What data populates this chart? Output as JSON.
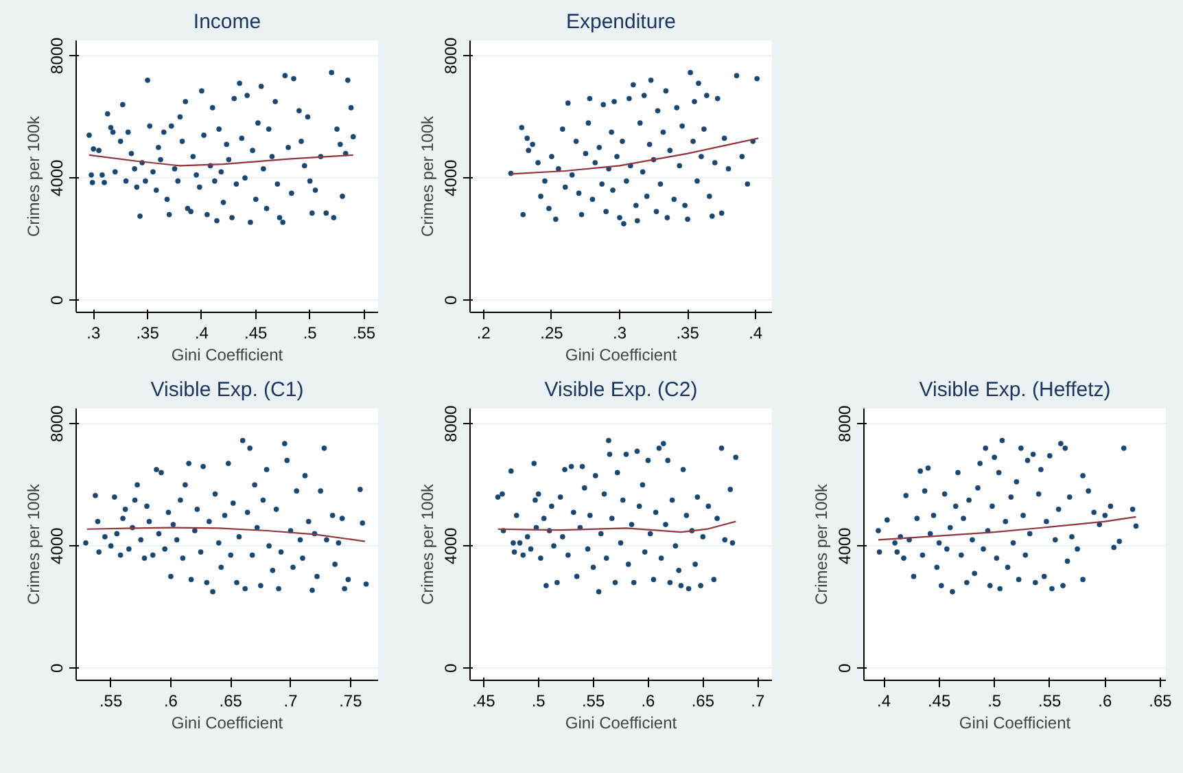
{
  "chart_data": [
    {
      "type": "scatter",
      "title": "Income",
      "xlabel": "Gini Coefficient",
      "ylabel": "Crimes per 100k",
      "xlim": [
        0.284,
        0.563
      ],
      "ylim": [
        -400,
        8500
      ],
      "xticks": [
        {
          "value": 0.3,
          "label": ".3"
        },
        {
          "value": 0.35,
          "label": ".35"
        },
        {
          "value": 0.4,
          "label": ".4"
        },
        {
          "value": 0.45,
          "label": ".45"
        },
        {
          "value": 0.5,
          "label": ".5"
        },
        {
          "value": 0.55,
          "label": ".55"
        }
      ],
      "yticks": [
        0,
        4000,
        8000
      ],
      "grid": "y",
      "series": [
        {
          "marker": "circle",
          "color": "#1a476f",
          "x": [
            0.296,
            0.298,
            0.299,
            0.3,
            0.305,
            0.308,
            0.31,
            0.313,
            0.316,
            0.318,
            0.32,
            0.325,
            0.327,
            0.33,
            0.332,
            0.335,
            0.338,
            0.34,
            0.343,
            0.345,
            0.348,
            0.35,
            0.352,
            0.355,
            0.358,
            0.36,
            0.362,
            0.365,
            0.368,
            0.37,
            0.372,
            0.375,
            0.378,
            0.38,
            0.382,
            0.385,
            0.387,
            0.39,
            0.392,
            0.395,
            0.398,
            0.4,
            0.402,
            0.405,
            0.408,
            0.41,
            0.412,
            0.414,
            0.416,
            0.418,
            0.42,
            0.423,
            0.425,
            0.428,
            0.43,
            0.432,
            0.435,
            0.437,
            0.44,
            0.442,
            0.445,
            0.447,
            0.45,
            0.452,
            0.455,
            0.457,
            0.46,
            0.462,
            0.465,
            0.468,
            0.47,
            0.472,
            0.475,
            0.477,
            0.48,
            0.483,
            0.485,
            0.49,
            0.492,
            0.495,
            0.498,
            0.5,
            0.502,
            0.505,
            0.51,
            0.515,
            0.52,
            0.522,
            0.525,
            0.528,
            0.53,
            0.533,
            0.535,
            0.538,
            0.54
          ],
          "values": [
            5400,
            4100,
            3850,
            4950,
            4900,
            4100,
            3850,
            6100,
            5650,
            5500,
            4200,
            5200,
            6400,
            3900,
            5500,
            4800,
            4300,
            3700,
            2750,
            4500,
            3900,
            7200,
            5700,
            4200,
            3600,
            5000,
            4600,
            5500,
            3300,
            2800,
            5700,
            4300,
            3900,
            6000,
            5200,
            6500,
            3000,
            2900,
            4700,
            4100,
            3700,
            6850,
            5400,
            2800,
            4400,
            6300,
            3900,
            2600,
            5600,
            4200,
            3200,
            5100,
            4600,
            2700,
            6600,
            3800,
            7100,
            5300,
            4000,
            6700,
            2550,
            4900,
            3300,
            5800,
            7000,
            4300,
            3000,
            5600,
            4700,
            6500,
            3800,
            2700,
            2550,
            7350,
            5000,
            3500,
            7250,
            6200,
            5200,
            4400,
            6000,
            3900,
            2850,
            3600,
            4700,
            2850,
            7450,
            2700,
            5600,
            5100,
            3400,
            4800,
            7200,
            6300,
            5350
          ]
        },
        {
          "type": "line",
          "color": "#90353b",
          "line_style": "solid",
          "x": [
            0.296,
            0.34,
            0.38,
            0.42,
            0.48,
            0.54
          ],
          "values": [
            4750,
            4550,
            4400,
            4450,
            4620,
            4750
          ]
        }
      ]
    },
    {
      "type": "scatter",
      "title": "Expenditure",
      "xlabel": "Gini Coefficient",
      "ylabel": "Crimes per 100k",
      "xlim": [
        0.19,
        0.412
      ],
      "ylim": [
        -400,
        8500
      ],
      "xticks": [
        {
          "value": 0.2,
          "label": ".2"
        },
        {
          "value": 0.25,
          "label": ".25"
        },
        {
          "value": 0.3,
          "label": ".3"
        },
        {
          "value": 0.35,
          "label": ".35"
        },
        {
          "value": 0.4,
          "label": ".4"
        }
      ],
      "yticks": [
        0,
        4000,
        8000
      ],
      "grid": "y",
      "series": [
        {
          "marker": "circle",
          "color": "#1a476f",
          "x": [
            0.22,
            0.228,
            0.229,
            0.232,
            0.233,
            0.236,
            0.24,
            0.242,
            0.245,
            0.248,
            0.25,
            0.253,
            0.255,
            0.258,
            0.26,
            0.262,
            0.265,
            0.268,
            0.27,
            0.272,
            0.275,
            0.277,
            0.278,
            0.28,
            0.282,
            0.285,
            0.287,
            0.288,
            0.29,
            0.292,
            0.294,
            0.295,
            0.296,
            0.298,
            0.3,
            0.302,
            0.303,
            0.305,
            0.307,
            0.308,
            0.31,
            0.312,
            0.313,
            0.315,
            0.317,
            0.318,
            0.32,
            0.322,
            0.323,
            0.325,
            0.327,
            0.328,
            0.33,
            0.332,
            0.334,
            0.335,
            0.337,
            0.34,
            0.342,
            0.344,
            0.346,
            0.348,
            0.35,
            0.352,
            0.354,
            0.355,
            0.357,
            0.358,
            0.36,
            0.362,
            0.364,
            0.366,
            0.368,
            0.37,
            0.372,
            0.375,
            0.377,
            0.38,
            0.386,
            0.39,
            0.394,
            0.398,
            0.401
          ],
          "values": [
            4150,
            5650,
            2800,
            5300,
            4900,
            5100,
            4500,
            3400,
            3900,
            3000,
            4700,
            2650,
            4300,
            5600,
            3700,
            6450,
            4100,
            5200,
            3500,
            2800,
            4800,
            5800,
            6600,
            3300,
            4500,
            5000,
            3800,
            6400,
            2900,
            4300,
            5500,
            3600,
            6500,
            4700,
            2700,
            5200,
            2500,
            3900,
            6600,
            4400,
            7050,
            3100,
            2600,
            5800,
            4200,
            6700,
            3400,
            5100,
            7200,
            4600,
            2900,
            6200,
            3800,
            5500,
            6850,
            2700,
            4900,
            3300,
            6300,
            4400,
            5700,
            3100,
            2650,
            7450,
            5200,
            6500,
            3900,
            7100,
            4700,
            5600,
            6700,
            3400,
            2750,
            4500,
            6600,
            2850,
            5300,
            4300,
            7350,
            4700,
            3800,
            5200,
            7250
          ]
        },
        {
          "type": "line",
          "color": "#90353b",
          "line_style": "solid",
          "x": [
            0.22,
            0.26,
            0.3,
            0.35,
            0.402
          ],
          "values": [
            4130,
            4230,
            4400,
            4800,
            5300
          ]
        }
      ]
    },
    {
      "type": "scatter",
      "title": "Visible Exp. (C1)",
      "xlabel": "Gini Coefficient",
      "ylabel": "Crimes per 100k",
      "xlim": [
        0.521,
        0.773
      ],
      "ylim": [
        -400,
        8500
      ],
      "xticks": [
        {
          "value": 0.55,
          "label": ".55"
        },
        {
          "value": 0.6,
          "label": ".6"
        },
        {
          "value": 0.65,
          "label": ".65"
        },
        {
          "value": 0.7,
          "label": ".7"
        },
        {
          "value": 0.75,
          "label": ".75"
        }
      ],
      "yticks": [
        0,
        4000,
        8000
      ],
      "grid": "y",
      "series": [
        {
          "marker": "circle",
          "color": "#1a476f",
          "x": [
            0.529,
            0.537,
            0.539,
            0.54,
            0.545,
            0.55,
            0.553,
            0.555,
            0.558,
            0.56,
            0.562,
            0.565,
            0.568,
            0.57,
            0.572,
            0.575,
            0.578,
            0.58,
            0.582,
            0.585,
            0.588,
            0.59,
            0.592,
            0.595,
            0.598,
            0.6,
            0.602,
            0.605,
            0.608,
            0.61,
            0.612,
            0.615,
            0.617,
            0.62,
            0.622,
            0.625,
            0.627,
            0.63,
            0.632,
            0.635,
            0.637,
            0.64,
            0.642,
            0.645,
            0.648,
            0.65,
            0.652,
            0.655,
            0.657,
            0.66,
            0.662,
            0.664,
            0.666,
            0.668,
            0.67,
            0.672,
            0.675,
            0.677,
            0.68,
            0.682,
            0.685,
            0.688,
            0.69,
            0.692,
            0.695,
            0.697,
            0.7,
            0.702,
            0.705,
            0.708,
            0.71,
            0.712,
            0.715,
            0.718,
            0.72,
            0.722,
            0.725,
            0.728,
            0.73,
            0.735,
            0.737,
            0.74,
            0.743,
            0.745,
            0.748,
            0.758,
            0.76,
            0.763
          ],
          "values": [
            4100,
            5650,
            4800,
            3800,
            4300,
            4000,
            5600,
            4400,
            3700,
            4900,
            5200,
            3900,
            4600,
            5500,
            6000,
            4200,
            3600,
            5300,
            4800,
            3700,
            6500,
            4400,
            6400,
            3900,
            5100,
            3000,
            4700,
            4200,
            5500,
            3600,
            6000,
            6700,
            2900,
            4500,
            5200,
            3800,
            6600,
            2800,
            4800,
            2500,
            5700,
            4100,
            3300,
            5000,
            6700,
            3700,
            5400,
            2800,
            4300,
            7450,
            2600,
            5100,
            7200,
            3700,
            6000,
            4600,
            2700,
            5500,
            6500,
            4000,
            3200,
            5200,
            2600,
            3800,
            7350,
            6800,
            4500,
            3300,
            5800,
            4200,
            3600,
            6300,
            4800,
            2550,
            4400,
            3000,
            5800,
            7200,
            4200,
            5000,
            3400,
            4100,
            4900,
            2600,
            2900,
            5850,
            4750,
            2750
          ]
        },
        {
          "type": "line",
          "color": "#90353b",
          "line_style": "solid",
          "x": [
            0.53,
            0.57,
            0.6,
            0.64,
            0.68,
            0.72,
            0.762
          ],
          "values": [
            4550,
            4580,
            4600,
            4580,
            4500,
            4380,
            4150
          ]
        }
      ]
    },
    {
      "type": "scatter",
      "title": "Visible Exp. (C2)",
      "xlabel": "Gini Coefficient",
      "ylabel": "Crimes per 100k",
      "xlim": [
        0.4376,
        0.713
      ],
      "ylim": [
        -400,
        8500
      ],
      "xticks": [
        {
          "value": 0.45,
          "label": ".45"
        },
        {
          "value": 0.5,
          "label": ".5"
        },
        {
          "value": 0.55,
          "label": ".55"
        },
        {
          "value": 0.6,
          "label": ".6"
        },
        {
          "value": 0.65,
          "label": ".65"
        },
        {
          "value": 0.7,
          "label": ".7"
        }
      ],
      "yticks": [
        0,
        4000,
        8000
      ],
      "grid": "y",
      "series": [
        {
          "marker": "circle",
          "color": "#1a476f",
          "x": [
            0.463,
            0.467,
            0.468,
            0.475,
            0.477,
            0.478,
            0.48,
            0.483,
            0.486,
            0.49,
            0.493,
            0.496,
            0.497,
            0.498,
            0.5,
            0.502,
            0.505,
            0.507,
            0.51,
            0.512,
            0.514,
            0.517,
            0.52,
            0.522,
            0.524,
            0.527,
            0.53,
            0.532,
            0.535,
            0.538,
            0.54,
            0.542,
            0.545,
            0.547,
            0.55,
            0.552,
            0.555,
            0.557,
            0.56,
            0.562,
            0.564,
            0.565,
            0.567,
            0.57,
            0.572,
            0.575,
            0.577,
            0.58,
            0.582,
            0.585,
            0.587,
            0.59,
            0.592,
            0.595,
            0.597,
            0.6,
            0.602,
            0.605,
            0.607,
            0.61,
            0.612,
            0.614,
            0.616,
            0.618,
            0.62,
            0.622,
            0.625,
            0.628,
            0.63,
            0.632,
            0.635,
            0.637,
            0.64,
            0.643,
            0.645,
            0.648,
            0.65,
            0.655,
            0.66,
            0.663,
            0.667,
            0.67,
            0.675,
            0.677,
            0.68
          ],
          "values": [
            5600,
            5700,
            4500,
            6450,
            4100,
            3800,
            5000,
            4100,
            3700,
            4300,
            3900,
            6700,
            5500,
            4600,
            5700,
            3600,
            4900,
            2700,
            4500,
            5300,
            4000,
            2800,
            5600,
            4300,
            6500,
            3700,
            6600,
            5100,
            3000,
            4600,
            6600,
            5900,
            3900,
            5000,
            3300,
            6300,
            2500,
            4400,
            5700,
            3600,
            7450,
            7000,
            4900,
            2800,
            6400,
            4100,
            5500,
            7000,
            3400,
            4700,
            2800,
            7100,
            5300,
            6000,
            3800,
            6800,
            4400,
            2900,
            5100,
            7200,
            3600,
            7350,
            4700,
            6800,
            2800,
            5500,
            4000,
            3200,
            2700,
            6500,
            5000,
            2600,
            4500,
            3400,
            5600,
            2700,
            4300,
            5300,
            2900,
            4900,
            7200,
            4200,
            5850,
            4100,
            6900
          ]
        },
        {
          "type": "line",
          "color": "#90353b",
          "line_style": "solid",
          "x": [
            0.463,
            0.52,
            0.58,
            0.605,
            0.63,
            0.655,
            0.68
          ],
          "values": [
            4550,
            4520,
            4580,
            4520,
            4450,
            4560,
            4800
          ]
        }
      ]
    },
    {
      "type": "scatter",
      "title": "Visible Exp. (Heffetz)",
      "xlabel": "Gini Coefficient",
      "ylabel": "Crimes per 100k",
      "xlim": [
        0.382,
        0.655
      ],
      "ylim": [
        -400,
        8500
      ],
      "xticks": [
        {
          "value": 0.4,
          "label": ".4"
        },
        {
          "value": 0.45,
          "label": ".45"
        },
        {
          "value": 0.5,
          "label": ".5"
        },
        {
          "value": 0.55,
          "label": ".55"
        },
        {
          "value": 0.6,
          "label": ".6"
        },
        {
          "value": 0.65,
          "label": ".65"
        }
      ],
      "yticks": [
        0,
        4000,
        8000
      ],
      "grid": "y",
      "series": [
        {
          "marker": "circle",
          "color": "#1a476f",
          "x": [
            0.395,
            0.396,
            0.403,
            0.41,
            0.412,
            0.415,
            0.418,
            0.42,
            0.423,
            0.427,
            0.43,
            0.433,
            0.435,
            0.437,
            0.44,
            0.442,
            0.445,
            0.448,
            0.45,
            0.452,
            0.455,
            0.457,
            0.46,
            0.462,
            0.465,
            0.467,
            0.47,
            0.472,
            0.475,
            0.477,
            0.48,
            0.482,
            0.485,
            0.487,
            0.49,
            0.492,
            0.494,
            0.496,
            0.498,
            0.5,
            0.502,
            0.504,
            0.505,
            0.507,
            0.51,
            0.512,
            0.515,
            0.517,
            0.52,
            0.522,
            0.524,
            0.526,
            0.528,
            0.53,
            0.532,
            0.535,
            0.537,
            0.54,
            0.542,
            0.545,
            0.547,
            0.55,
            0.552,
            0.555,
            0.558,
            0.56,
            0.562,
            0.564,
            0.566,
            0.568,
            0.57,
            0.575,
            0.58,
            0.58,
            0.585,
            0.59,
            0.595,
            0.6,
            0.605,
            0.608,
            0.613,
            0.617,
            0.625,
            0.628
          ],
          "values": [
            4500,
            3800,
            4850,
            4100,
            3800,
            4300,
            3600,
            5650,
            4200,
            3000,
            4900,
            6450,
            3700,
            5800,
            6550,
            4400,
            5000,
            3300,
            4100,
            2700,
            5700,
            3900,
            4600,
            2500,
            5300,
            6400,
            3700,
            4900,
            2800,
            5500,
            4200,
            3100,
            5900,
            6700,
            3900,
            7200,
            4500,
            2700,
            5300,
            6900,
            3600,
            6400,
            2600,
            7450,
            4800,
            3300,
            5600,
            4100,
            6100,
            2900,
            7200,
            5000,
            3700,
            6800,
            4400,
            7000,
            2800,
            5700,
            6500,
            3000,
            4800,
            6950,
            2600,
            4200,
            5200,
            7350,
            2700,
            7200,
            3500,
            5600,
            4300,
            3900,
            6300,
            2900,
            5800,
            5100,
            4700,
            5000,
            5300,
            3950,
            4150,
            7200,
            5200,
            4650
          ]
        },
        {
          "type": "line",
          "color": "#90353b",
          "line_style": "solid",
          "x": [
            0.395,
            0.45,
            0.5,
            0.55,
            0.6,
            0.628
          ],
          "values": [
            4200,
            4330,
            4450,
            4620,
            4800,
            4950
          ]
        }
      ]
    }
  ]
}
